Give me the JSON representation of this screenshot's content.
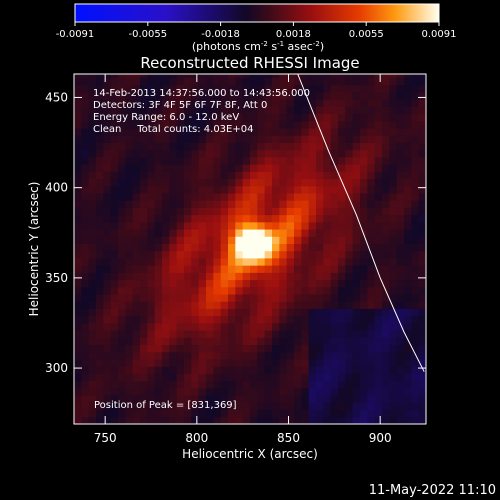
{
  "chart_data": {
    "type": "heatmap",
    "title": "Reconstructed RHESSI Image",
    "xlabel": "Heliocentric X (arcsec)",
    "ylabel": "Heliocentric Y (arcsec)",
    "xlim": [
      733,
      925
    ],
    "ylim": [
      269,
      463
    ],
    "x_ticks": [
      750,
      800,
      850,
      900
    ],
    "y_ticks": [
      300,
      350,
      400,
      450
    ],
    "colorbar": {
      "ticks": [
        "-0.0091",
        "-0.0055",
        "-0.0018",
        "0.0018",
        "0.0055",
        "0.0091"
      ],
      "range": [
        -0.0091,
        0.0091
      ],
      "units_parts": [
        "(photons cm",
        "-2",
        " s",
        "-1",
        " asec",
        "-2",
        ")"
      ]
    },
    "annotations": [
      "14-Feb-2013 14:37:56.000 to 14:43:56.000",
      "Detectors: 3F 4F 5F 6F 7F 8F, Att 0",
      "Energy Range: 6.0 - 12.0 keV",
      "Clean     Total counts: 4.03E+04"
    ],
    "peak_label": "Position of Peak = [831,369]",
    "peak": {
      "x": 831,
      "y": 369,
      "value": 0.0091
    },
    "limb_curve": [
      [
        855,
        463
      ],
      [
        872,
        420
      ],
      [
        887,
        385
      ],
      [
        900,
        350
      ],
      [
        913,
        320
      ],
      [
        924,
        298
      ]
    ],
    "grid": false
  },
  "footer": {
    "date": "11-May-2022 11:10"
  }
}
